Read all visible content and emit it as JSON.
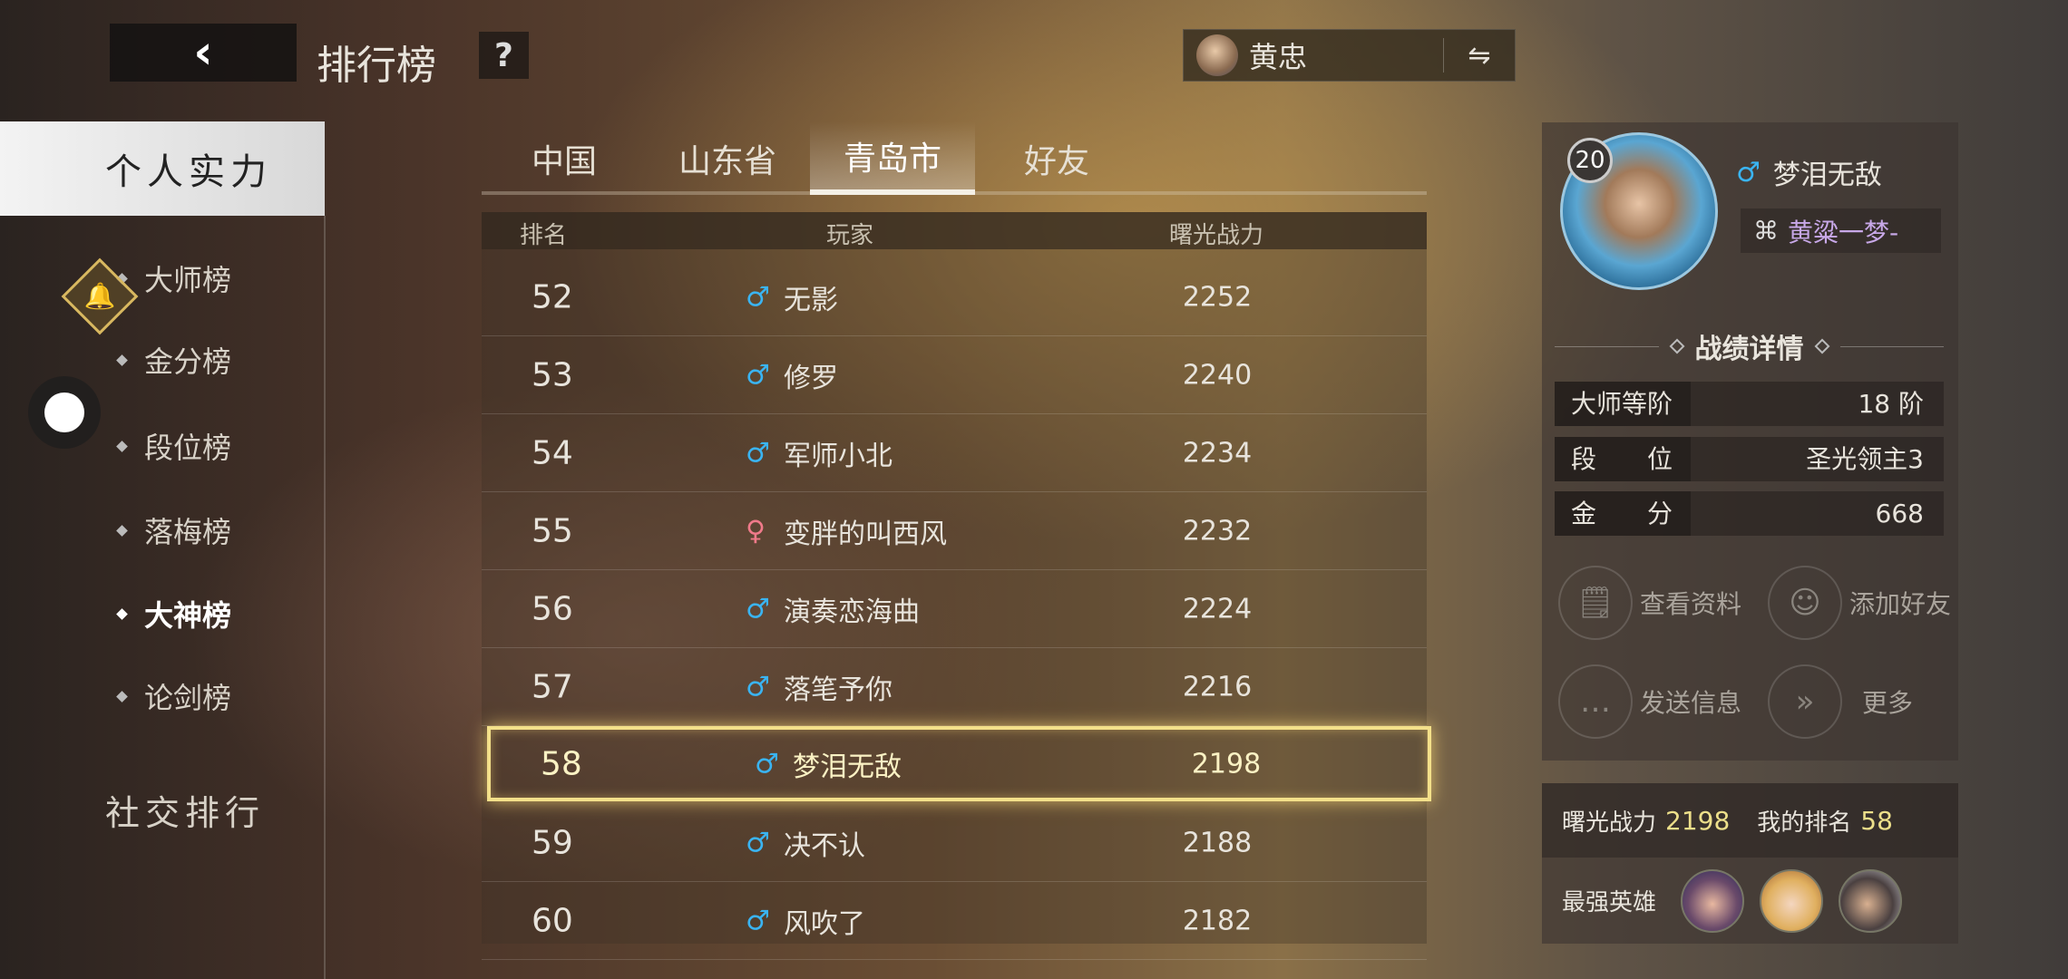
{
  "header": {
    "back_icon": "chevron-left-icon",
    "title": "排行榜",
    "help": "?",
    "hero_name": "黄忠",
    "swap_icon": "⇋"
  },
  "sidebar": {
    "section1": "个人实力",
    "items": [
      {
        "label": "大师榜"
      },
      {
        "label": "金分榜"
      },
      {
        "label": "段位榜"
      },
      {
        "label": "落梅榜"
      },
      {
        "label": "大神榜",
        "active": true
      },
      {
        "label": "论剑榜"
      }
    ],
    "section2": "社交排行"
  },
  "tabs": [
    {
      "label": "中国"
    },
    {
      "label": "山东省"
    },
    {
      "label": "青岛市",
      "selected": true
    },
    {
      "label": "好友"
    }
  ],
  "table": {
    "headers": [
      "排名",
      "玩家",
      "曙光战力"
    ],
    "rows": [
      {
        "rank": "52",
        "gender": "♂",
        "name": "无影",
        "power": "2252"
      },
      {
        "rank": "53",
        "gender": "♂",
        "name": "修罗",
        "power": "2240"
      },
      {
        "rank": "54",
        "gender": "♂",
        "name": "军师小北",
        "power": "2234"
      },
      {
        "rank": "55",
        "gender": "♀",
        "name": "变胖的叫西风",
        "power": "2232"
      },
      {
        "rank": "56",
        "gender": "♂",
        "name": "演奏恋海曲",
        "power": "2224"
      },
      {
        "rank": "57",
        "gender": "♂",
        "name": "落笔予你",
        "power": "2216"
      },
      {
        "rank": "58",
        "gender": "♂",
        "name": "梦泪无敌",
        "power": "2198",
        "selected": true
      },
      {
        "rank": "59",
        "gender": "♂",
        "name": "决不认",
        "power": "2188"
      },
      {
        "rank": "60",
        "gender": "♂",
        "name": "风吹了",
        "power": "2182"
      }
    ]
  },
  "profile": {
    "level": "20",
    "gender": "♂",
    "name": "梦泪无敌",
    "title": "黄粱一梦-",
    "section": "战绩详情",
    "stats": [
      {
        "label": "大师等阶",
        "value": "18 阶"
      },
      {
        "label": "段　　位",
        "value": "圣光领主3"
      },
      {
        "label": "金　　分",
        "value": "668"
      }
    ],
    "actions": [
      {
        "label": "查看资料",
        "icon": "profile-search-icon"
      },
      {
        "label": "添加好友",
        "icon": "add-friend-icon"
      },
      {
        "label": "发送信息",
        "icon": "message-icon"
      },
      {
        "label": "更多",
        "icon": "double-chevron-right-icon"
      }
    ]
  },
  "summary": {
    "power_label": "曙光战力",
    "power": "2198",
    "rank_label": "我的排名",
    "rank": "58",
    "heroes_label": "最强英雄"
  },
  "colors": {
    "male": "#3ab4f2",
    "female": "#f07a8a",
    "highlight": "#f3e08a",
    "accent_value": "#ecdf8a"
  }
}
